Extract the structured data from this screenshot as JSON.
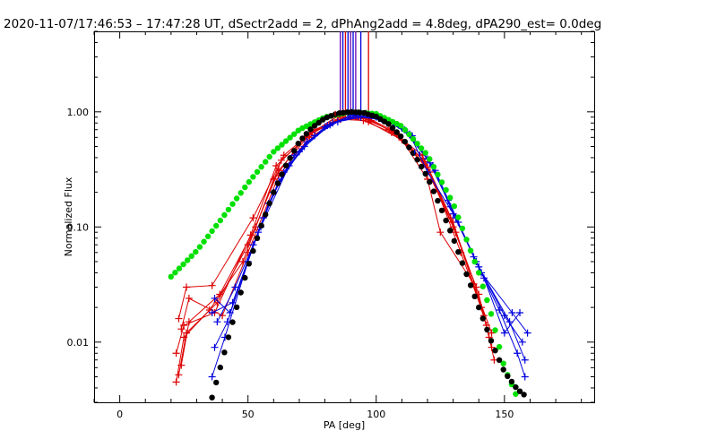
{
  "chart_data": {
    "type": "scatter",
    "title": "2020-11-07/17:46:53 – 17:47:28 UT, dSectr2add = 2, dPhAng2add = 4.8deg, dPA290_est=  0.0deg",
    "xlabel": "PA [deg]",
    "ylabel": "Normalized Flux",
    "xlim": [
      -10,
      185
    ],
    "ylim": [
      0.003,
      5.0
    ],
    "yscale": "log",
    "grid": false,
    "x_ticks": [
      {
        "value": 0,
        "label": "0"
      },
      {
        "value": 50,
        "label": "50"
      },
      {
        "value": 100,
        "label": "100"
      },
      {
        "value": 150,
        "label": "150"
      }
    ],
    "y_ticks": [
      {
        "value": 0.01,
        "label": "0.01"
      },
      {
        "value": 0.1,
        "label": "0.10"
      },
      {
        "value": 1.0,
        "label": "1.00"
      }
    ],
    "colors": {
      "red": "#dd0000",
      "blue": "#0000dd",
      "green": "#00e000",
      "black": "#000000",
      "purple": "#6a00b0"
    },
    "series": [
      {
        "color": "red",
        "marker": "plus",
        "lines": true,
        "points": [
          [
            22,
            0.0045
          ],
          [
            25,
            0.011
          ],
          [
            35,
            0.019
          ],
          [
            48,
            0.05
          ],
          [
            60,
            0.26
          ],
          [
            72,
            0.6
          ],
          [
            85,
            0.85
          ],
          [
            95,
            0.88
          ],
          [
            105,
            0.7
          ],
          [
            118,
            0.42
          ],
          [
            130,
            0.11
          ],
          [
            143,
            0.014
          ],
          [
            146,
            0.007
          ]
        ]
      },
      {
        "color": "red",
        "marker": "plus",
        "lines": true,
        "points": [
          [
            23,
            0.0052
          ],
          [
            26,
            0.012
          ],
          [
            38,
            0.022
          ],
          [
            50,
            0.07
          ],
          [
            62,
            0.31
          ],
          [
            74,
            0.63
          ],
          [
            86,
            0.9
          ],
          [
            96,
            0.9
          ],
          [
            107,
            0.68
          ],
          [
            119,
            0.37
          ],
          [
            131,
            0.09
          ],
          [
            141,
            0.02
          ],
          [
            145,
            0.009
          ]
        ]
      },
      {
        "color": "red",
        "marker": "plus",
        "lines": true,
        "points": [
          [
            24,
            0.0063
          ],
          [
            27,
            0.015
          ],
          [
            39,
            0.026
          ],
          [
            53,
            0.1
          ],
          [
            63,
            0.38
          ],
          [
            75,
            0.66
          ],
          [
            85,
            0.92
          ],
          [
            97,
            0.86
          ],
          [
            108,
            0.64
          ],
          [
            120,
            0.33
          ],
          [
            129,
            0.12
          ],
          [
            140,
            0.026
          ],
          [
            144,
            0.011
          ]
        ]
      },
      {
        "color": "red",
        "marker": "plus",
        "lines": true,
        "points": [
          [
            22,
            0.008
          ],
          [
            25,
            0.014
          ],
          [
            37,
            0.018
          ],
          [
            51,
            0.085
          ],
          [
            61,
            0.34
          ],
          [
            73,
            0.61
          ],
          [
            87,
            0.98
          ],
          [
            98,
            0.84
          ],
          [
            109,
            0.62
          ],
          [
            120,
            0.26
          ],
          [
            125,
            0.09
          ],
          [
            138,
            0.032
          ],
          [
            145,
            0.012
          ]
        ]
      },
      {
        "color": "red",
        "marker": "plus",
        "lines": true,
        "points": [
          [
            23,
            0.016
          ],
          [
            26,
            0.03
          ],
          [
            36,
            0.031
          ],
          [
            52,
            0.12
          ],
          [
            64,
            0.42
          ],
          [
            76,
            0.7
          ],
          [
            88,
            0.9
          ],
          [
            97,
            0.82
          ],
          [
            110,
            0.57
          ],
          [
            121,
            0.3
          ],
          [
            133,
            0.06
          ],
          [
            142,
            0.017
          ]
        ]
      },
      {
        "color": "red",
        "marker": "plus",
        "lines": true,
        "points": [
          [
            24,
            0.013
          ],
          [
            27,
            0.024
          ],
          [
            40,
            0.017
          ],
          [
            50,
            0.06
          ],
          [
            62,
            0.28
          ],
          [
            74,
            0.6
          ],
          [
            86,
            0.86
          ],
          [
            95,
            0.84
          ],
          [
            106,
            0.66
          ],
          [
            118,
            0.39
          ],
          [
            130,
            0.1
          ],
          [
            139,
            0.03
          ]
        ]
      },
      {
        "color": "blue",
        "marker": "plus",
        "lines": true,
        "points": [
          [
            36,
            0.005
          ],
          [
            41,
            0.011
          ],
          [
            50,
            0.05
          ],
          [
            58,
            0.16
          ],
          [
            68,
            0.42
          ],
          [
            80,
            0.74
          ],
          [
            90,
            0.93
          ],
          [
            100,
            0.9
          ],
          [
            110,
            0.72
          ],
          [
            120,
            0.39
          ],
          [
            128,
            0.17
          ],
          [
            138,
            0.055
          ],
          [
            148,
            0.019
          ],
          [
            155,
            0.008
          ],
          [
            158,
            0.005
          ]
        ]
      },
      {
        "color": "blue",
        "marker": "plus",
        "lines": true,
        "points": [
          [
            37,
            0.009
          ],
          [
            42,
            0.015
          ],
          [
            52,
            0.07
          ],
          [
            60,
            0.2
          ],
          [
            70,
            0.45
          ],
          [
            81,
            0.76
          ],
          [
            91,
            0.94
          ],
          [
            101,
            0.88
          ],
          [
            111,
            0.7
          ],
          [
            121,
            0.36
          ],
          [
            129,
            0.15
          ],
          [
            139,
            0.05
          ],
          [
            150,
            0.017
          ],
          [
            157,
            0.01
          ]
        ]
      },
      {
        "color": "blue",
        "marker": "plus",
        "lines": true,
        "points": [
          [
            36,
            0.018
          ],
          [
            44,
            0.022
          ],
          [
            54,
            0.09
          ],
          [
            62,
            0.25
          ],
          [
            72,
            0.5
          ],
          [
            82,
            0.77
          ],
          [
            92,
            0.93
          ],
          [
            102,
            0.87
          ],
          [
            112,
            0.67
          ],
          [
            122,
            0.34
          ],
          [
            130,
            0.13
          ],
          [
            140,
            0.045
          ],
          [
            152,
            0.015
          ],
          [
            158,
            0.007
          ]
        ]
      },
      {
        "color": "blue",
        "marker": "plus",
        "lines": true,
        "points": [
          [
            37,
            0.024
          ],
          [
            43,
            0.018
          ],
          [
            56,
            0.12
          ],
          [
            64,
            0.3
          ],
          [
            73,
            0.55
          ],
          [
            83,
            0.8
          ],
          [
            93,
            0.92
          ],
          [
            103,
            0.86
          ],
          [
            113,
            0.64
          ],
          [
            120,
            0.3
          ],
          [
            131,
            0.12
          ],
          [
            141,
            0.04
          ],
          [
            153,
            0.018
          ],
          [
            159,
            0.012
          ]
        ]
      },
      {
        "color": "blue",
        "marker": "plus",
        "lines": true,
        "points": [
          [
            38,
            0.015
          ],
          [
            45,
            0.03
          ],
          [
            55,
            0.1
          ],
          [
            66,
            0.34
          ],
          [
            76,
            0.62
          ],
          [
            85,
            0.82
          ],
          [
            94,
            0.9
          ],
          [
            104,
            0.84
          ],
          [
            114,
            0.62
          ],
          [
            123,
            0.31
          ],
          [
            132,
            0.11
          ],
          [
            142,
            0.036
          ],
          [
            150,
            0.012
          ],
          [
            156,
            0.018
          ]
        ]
      },
      {
        "color": "green",
        "marker": "circle",
        "lines": false,
        "model": "green",
        "points": [
          [
            20,
            0.037
          ],
          [
            30,
            0.062
          ],
          [
            40,
            0.12
          ],
          [
            50,
            0.24
          ],
          [
            60,
            0.45
          ],
          [
            70,
            0.7
          ],
          [
            80,
            0.9
          ],
          [
            90,
            1.0
          ],
          [
            100,
            0.96
          ],
          [
            110,
            0.75
          ],
          [
            120,
            0.42
          ],
          [
            130,
            0.16
          ],
          [
            140,
            0.04
          ],
          [
            145,
            0.017
          ],
          [
            150,
            0.006
          ],
          [
            155,
            0.0033
          ]
        ]
      },
      {
        "color": "black",
        "marker": "circle",
        "lines": false,
        "model": "black",
        "points": [
          [
            36,
            0.0033
          ],
          [
            40,
            0.007
          ],
          [
            45,
            0.018
          ],
          [
            50,
            0.045
          ],
          [
            55,
            0.1
          ],
          [
            60,
            0.2
          ],
          [
            65,
            0.35
          ],
          [
            70,
            0.55
          ],
          [
            75,
            0.73
          ],
          [
            80,
            0.88
          ],
          [
            85,
            0.97
          ],
          [
            90,
            1.0
          ],
          [
            95,
            0.98
          ],
          [
            100,
            0.91
          ],
          [
            105,
            0.78
          ],
          [
            110,
            0.6
          ],
          [
            115,
            0.42
          ],
          [
            120,
            0.27
          ],
          [
            125,
            0.15
          ],
          [
            130,
            0.08
          ],
          [
            135,
            0.04
          ],
          [
            140,
            0.02
          ],
          [
            145,
            0.01
          ],
          [
            150,
            0.0055
          ],
          [
            155,
            0.0039
          ],
          [
            159,
            0.0033
          ]
        ]
      }
    ],
    "error_bars": [
      {
        "x": 84,
        "y": 0.97,
        "color": "red"
      },
      {
        "x": 86,
        "y": 0.99,
        "color": "black"
      },
      {
        "x": 90,
        "y": 1.0,
        "color": "black"
      },
      {
        "x": 93,
        "y": 1.0,
        "color": "black"
      },
      {
        "x": 96,
        "y": 0.99,
        "color": "black"
      },
      {
        "x": 115,
        "y": 0.45,
        "color": "blue"
      },
      {
        "x": 117,
        "y": 0.43,
        "color": "blue"
      }
    ],
    "vertical_lines": [
      {
        "x": 86,
        "color": "purple"
      },
      {
        "x": 87,
        "color": "blue"
      },
      {
        "x": 88,
        "color": "red"
      },
      {
        "x": 89,
        "color": "blue"
      },
      {
        "x": 90,
        "color": "purple"
      },
      {
        "x": 91,
        "color": "blue"
      },
      {
        "x": 92,
        "color": "purple"
      },
      {
        "x": 94,
        "color": "blue"
      },
      {
        "x": 97,
        "color": "red"
      }
    ]
  }
}
